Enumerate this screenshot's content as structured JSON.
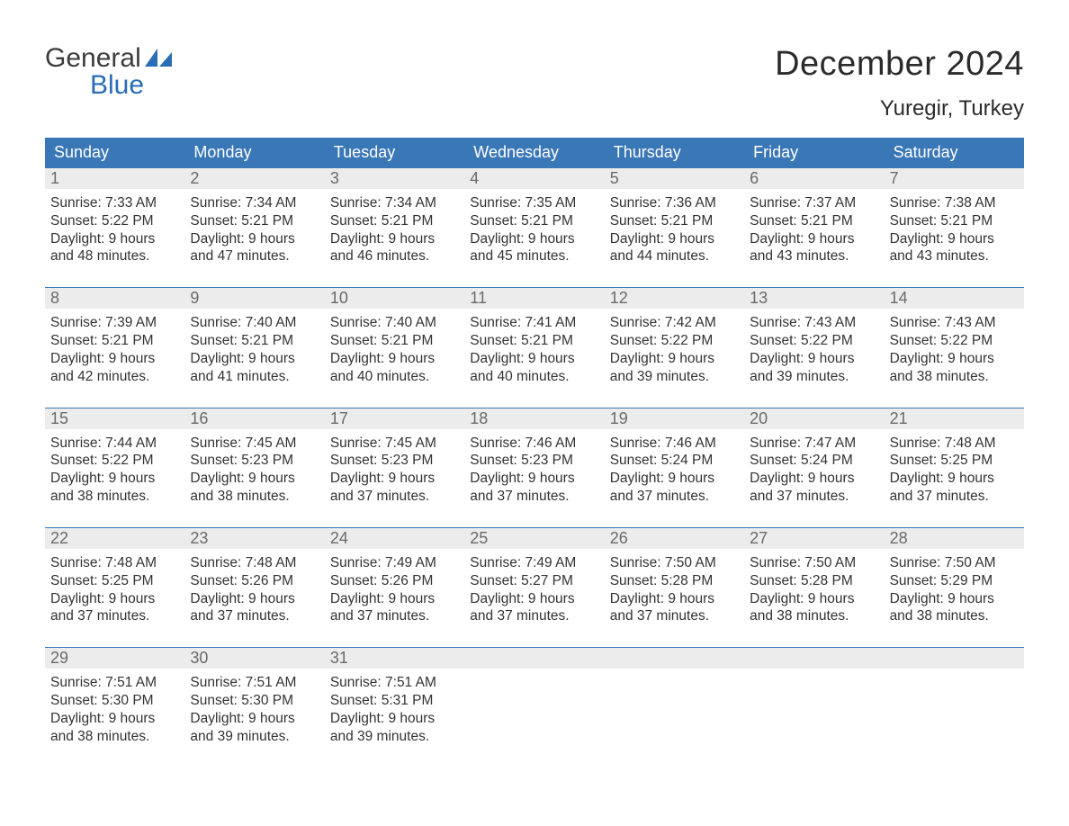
{
  "logo": {
    "general": "General",
    "blue": "Blue"
  },
  "title": "December 2024",
  "location": "Yuregir, Turkey",
  "colors": {
    "header_bg": "#3a77b7",
    "header_text": "#ffffff",
    "daynum_bg": "#ececec",
    "daynum_text": "#6a6a6a",
    "body_text": "#333333",
    "rule": "#3a77b7",
    "logo_blue": "#2a6db5",
    "logo_dark": "#3c3c3c",
    "page_bg": "#ffffff"
  },
  "dayheads": [
    "Sunday",
    "Monday",
    "Tuesday",
    "Wednesday",
    "Thursday",
    "Friday",
    "Saturday"
  ],
  "weeks": [
    [
      {
        "n": "1",
        "sr": "Sunrise: 7:33 AM",
        "ss": "Sunset: 5:22 PM",
        "d1": "Daylight: 9 hours",
        "d2": "and 48 minutes."
      },
      {
        "n": "2",
        "sr": "Sunrise: 7:34 AM",
        "ss": "Sunset: 5:21 PM",
        "d1": "Daylight: 9 hours",
        "d2": "and 47 minutes."
      },
      {
        "n": "3",
        "sr": "Sunrise: 7:34 AM",
        "ss": "Sunset: 5:21 PM",
        "d1": "Daylight: 9 hours",
        "d2": "and 46 minutes."
      },
      {
        "n": "4",
        "sr": "Sunrise: 7:35 AM",
        "ss": "Sunset: 5:21 PM",
        "d1": "Daylight: 9 hours",
        "d2": "and 45 minutes."
      },
      {
        "n": "5",
        "sr": "Sunrise: 7:36 AM",
        "ss": "Sunset: 5:21 PM",
        "d1": "Daylight: 9 hours",
        "d2": "and 44 minutes."
      },
      {
        "n": "6",
        "sr": "Sunrise: 7:37 AM",
        "ss": "Sunset: 5:21 PM",
        "d1": "Daylight: 9 hours",
        "d2": "and 43 minutes."
      },
      {
        "n": "7",
        "sr": "Sunrise: 7:38 AM",
        "ss": "Sunset: 5:21 PM",
        "d1": "Daylight: 9 hours",
        "d2": "and 43 minutes."
      }
    ],
    [
      {
        "n": "8",
        "sr": "Sunrise: 7:39 AM",
        "ss": "Sunset: 5:21 PM",
        "d1": "Daylight: 9 hours",
        "d2": "and 42 minutes."
      },
      {
        "n": "9",
        "sr": "Sunrise: 7:40 AM",
        "ss": "Sunset: 5:21 PM",
        "d1": "Daylight: 9 hours",
        "d2": "and 41 minutes."
      },
      {
        "n": "10",
        "sr": "Sunrise: 7:40 AM",
        "ss": "Sunset: 5:21 PM",
        "d1": "Daylight: 9 hours",
        "d2": "and 40 minutes."
      },
      {
        "n": "11",
        "sr": "Sunrise: 7:41 AM",
        "ss": "Sunset: 5:21 PM",
        "d1": "Daylight: 9 hours",
        "d2": "and 40 minutes."
      },
      {
        "n": "12",
        "sr": "Sunrise: 7:42 AM",
        "ss": "Sunset: 5:22 PM",
        "d1": "Daylight: 9 hours",
        "d2": "and 39 minutes."
      },
      {
        "n": "13",
        "sr": "Sunrise: 7:43 AM",
        "ss": "Sunset: 5:22 PM",
        "d1": "Daylight: 9 hours",
        "d2": "and 39 minutes."
      },
      {
        "n": "14",
        "sr": "Sunrise: 7:43 AM",
        "ss": "Sunset: 5:22 PM",
        "d1": "Daylight: 9 hours",
        "d2": "and 38 minutes."
      }
    ],
    [
      {
        "n": "15",
        "sr": "Sunrise: 7:44 AM",
        "ss": "Sunset: 5:22 PM",
        "d1": "Daylight: 9 hours",
        "d2": "and 38 minutes."
      },
      {
        "n": "16",
        "sr": "Sunrise: 7:45 AM",
        "ss": "Sunset: 5:23 PM",
        "d1": "Daylight: 9 hours",
        "d2": "and 38 minutes."
      },
      {
        "n": "17",
        "sr": "Sunrise: 7:45 AM",
        "ss": "Sunset: 5:23 PM",
        "d1": "Daylight: 9 hours",
        "d2": "and 37 minutes."
      },
      {
        "n": "18",
        "sr": "Sunrise: 7:46 AM",
        "ss": "Sunset: 5:23 PM",
        "d1": "Daylight: 9 hours",
        "d2": "and 37 minutes."
      },
      {
        "n": "19",
        "sr": "Sunrise: 7:46 AM",
        "ss": "Sunset: 5:24 PM",
        "d1": "Daylight: 9 hours",
        "d2": "and 37 minutes."
      },
      {
        "n": "20",
        "sr": "Sunrise: 7:47 AM",
        "ss": "Sunset: 5:24 PM",
        "d1": "Daylight: 9 hours",
        "d2": "and 37 minutes."
      },
      {
        "n": "21",
        "sr": "Sunrise: 7:48 AM",
        "ss": "Sunset: 5:25 PM",
        "d1": "Daylight: 9 hours",
        "d2": "and 37 minutes."
      }
    ],
    [
      {
        "n": "22",
        "sr": "Sunrise: 7:48 AM",
        "ss": "Sunset: 5:25 PM",
        "d1": "Daylight: 9 hours",
        "d2": "and 37 minutes."
      },
      {
        "n": "23",
        "sr": "Sunrise: 7:48 AM",
        "ss": "Sunset: 5:26 PM",
        "d1": "Daylight: 9 hours",
        "d2": "and 37 minutes."
      },
      {
        "n": "24",
        "sr": "Sunrise: 7:49 AM",
        "ss": "Sunset: 5:26 PM",
        "d1": "Daylight: 9 hours",
        "d2": "and 37 minutes."
      },
      {
        "n": "25",
        "sr": "Sunrise: 7:49 AM",
        "ss": "Sunset: 5:27 PM",
        "d1": "Daylight: 9 hours",
        "d2": "and 37 minutes."
      },
      {
        "n": "26",
        "sr": "Sunrise: 7:50 AM",
        "ss": "Sunset: 5:28 PM",
        "d1": "Daylight: 9 hours",
        "d2": "and 37 minutes."
      },
      {
        "n": "27",
        "sr": "Sunrise: 7:50 AM",
        "ss": "Sunset: 5:28 PM",
        "d1": "Daylight: 9 hours",
        "d2": "and 38 minutes."
      },
      {
        "n": "28",
        "sr": "Sunrise: 7:50 AM",
        "ss": "Sunset: 5:29 PM",
        "d1": "Daylight: 9 hours",
        "d2": "and 38 minutes."
      }
    ],
    [
      {
        "n": "29",
        "sr": "Sunrise: 7:51 AM",
        "ss": "Sunset: 5:30 PM",
        "d1": "Daylight: 9 hours",
        "d2": "and 38 minutes."
      },
      {
        "n": "30",
        "sr": "Sunrise: 7:51 AM",
        "ss": "Sunset: 5:30 PM",
        "d1": "Daylight: 9 hours",
        "d2": "and 39 minutes."
      },
      {
        "n": "31",
        "sr": "Sunrise: 7:51 AM",
        "ss": "Sunset: 5:31 PM",
        "d1": "Daylight: 9 hours",
        "d2": "and 39 minutes."
      },
      {
        "n": "",
        "sr": "",
        "ss": "",
        "d1": "",
        "d2": ""
      },
      {
        "n": "",
        "sr": "",
        "ss": "",
        "d1": "",
        "d2": ""
      },
      {
        "n": "",
        "sr": "",
        "ss": "",
        "d1": "",
        "d2": ""
      },
      {
        "n": "",
        "sr": "",
        "ss": "",
        "d1": "",
        "d2": ""
      }
    ]
  ]
}
